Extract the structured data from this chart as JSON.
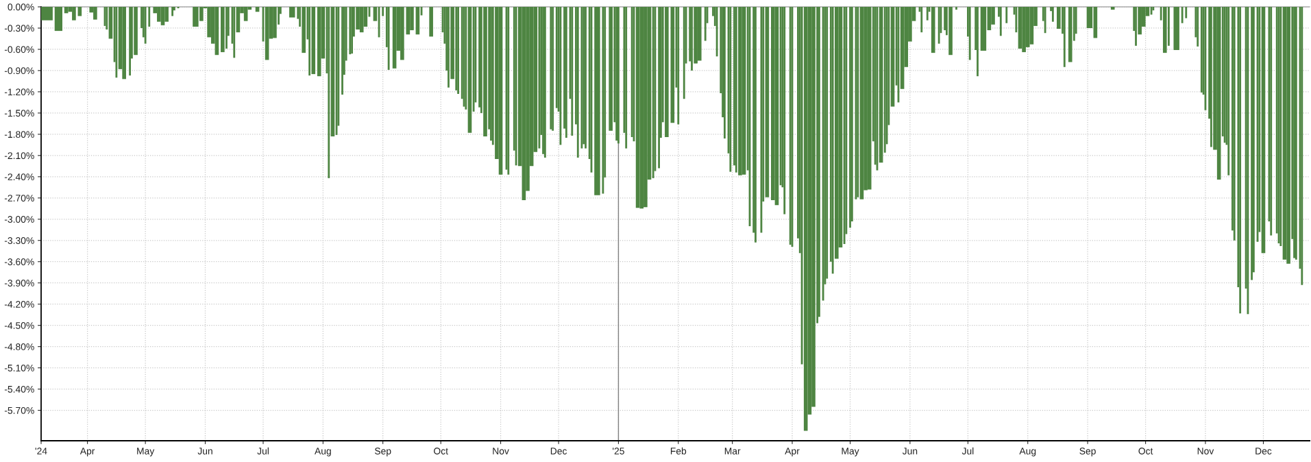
{
  "chart_data": {
    "type": "bar",
    "color": "#4e8542",
    "x": [
      "2024-03-11",
      "2024-03-17",
      "2024-03-21",
      "2024-03-23",
      "2024-03-25",
      "2024-03-28",
      "2024-03-30",
      "2024-04-03",
      "2024-04-05",
      "2024-04-08",
      "2024-04-10",
      "2024-04-11",
      "2024-04-13",
      "2024-04-15",
      "2024-04-16",
      "2024-04-18",
      "2024-04-20",
      "2024-04-23",
      "2024-04-24",
      "2024-04-26",
      "2024-04-29",
      "2024-04-30",
      "2024-05-01",
      "2024-05-03",
      "2024-05-04",
      "2024-05-06",
      "2024-05-08",
      "2024-05-10",
      "2024-05-12",
      "2024-05-15",
      "2024-05-16",
      "2024-05-18",
      "2024-05-19",
      "2024-05-27",
      "2024-05-30",
      "2024-06-01",
      "2024-06-03",
      "2024-06-05",
      "2024-06-07",
      "2024-06-10",
      "2024-06-12",
      "2024-06-13",
      "2024-06-15",
      "2024-06-16",
      "2024-06-18",
      "2024-06-20",
      "2024-06-22",
      "2024-06-24",
      "2024-06-26",
      "2024-06-28",
      "2024-06-30",
      "2024-07-01",
      "2024-07-03",
      "2024-07-05",
      "2024-07-07",
      "2024-07-09",
      "2024-07-10",
      "2024-07-12",
      "2024-07-16",
      "2024-07-19",
      "2024-07-20",
      "2024-07-22",
      "2024-07-24",
      "2024-07-25",
      "2024-07-27",
      "2024-07-30",
      "2024-08-01",
      "2024-08-03",
      "2024-08-04",
      "2024-08-06",
      "2024-08-08",
      "2024-08-09",
      "2024-08-11",
      "2024-08-12",
      "2024-08-13",
      "2024-08-15",
      "2024-08-16",
      "2024-08-17",
      "2024-08-19",
      "2024-08-21",
      "2024-08-23",
      "2024-08-25",
      "2024-08-26",
      "2024-08-28",
      "2024-08-30",
      "2024-08-31",
      "2024-09-01",
      "2024-09-03",
      "2024-09-04",
      "2024-09-07",
      "2024-09-09",
      "2024-09-11",
      "2024-09-14",
      "2024-09-16",
      "2024-09-19",
      "2024-09-21",
      "2024-09-22",
      "2024-09-26",
      "2024-09-28",
      "2024-10-02",
      "2024-10-03",
      "2024-10-04",
      "2024-10-05",
      "2024-10-07",
      "2024-10-09",
      "2024-10-10",
      "2024-10-12",
      "2024-10-13",
      "2024-10-14",
      "2024-10-16",
      "2024-10-18",
      "2024-10-19",
      "2024-10-21",
      "2024-10-22",
      "2024-10-24",
      "2024-10-26",
      "2024-10-27",
      "2024-10-28",
      "2024-10-30",
      "2024-11-01",
      "2024-11-04",
      "2024-11-05",
      "2024-11-08",
      "2024-11-09",
      "2024-11-11",
      "2024-11-13",
      "2024-11-15",
      "2024-11-17",
      "2024-11-19",
      "2024-11-21",
      "2024-11-22",
      "2024-11-23",
      "2024-11-24",
      "2024-11-27",
      "2024-11-28",
      "2024-11-30",
      "2024-12-01",
      "2024-12-02",
      "2024-12-04",
      "2024-12-05",
      "2024-12-07",
      "2024-12-08",
      "2024-12-10",
      "2024-12-11",
      "2024-12-13",
      "2024-12-14",
      "2024-12-15",
      "2024-12-17",
      "2024-12-18",
      "2024-12-21",
      "2024-12-24",
      "2024-12-25",
      "2024-12-28",
      "2024-12-30",
      "2024-12-31",
      "2025-01-01",
      "2025-01-04",
      "2025-01-05",
      "2025-01-08",
      "2025-01-09",
      "2025-01-11",
      "2025-01-13",
      "2025-01-15",
      "2025-01-17",
      "2025-01-19",
      "2025-01-20",
      "2025-01-22",
      "2025-01-23",
      "2025-01-24",
      "2025-01-26",
      "2025-01-29",
      "2025-01-31",
      "2025-02-01",
      "2025-02-04",
      "2025-02-05",
      "2025-02-07",
      "2025-02-08",
      "2025-02-10",
      "2025-02-12",
      "2025-02-15",
      "2025-02-16",
      "2025-02-19",
      "2025-02-20",
      "2025-02-21",
      "2025-02-23",
      "2025-02-24",
      "2025-02-25",
      "2025-02-27",
      "2025-02-28",
      "2025-03-02",
      "2025-03-03",
      "2025-03-05",
      "2025-03-07",
      "2025-03-09",
      "2025-03-10",
      "2025-03-12",
      "2025-03-13",
      "2025-03-16",
      "2025-03-17",
      "2025-03-19",
      "2025-03-22",
      "2025-03-24",
      "2025-03-26",
      "2025-03-27",
      "2025-03-28",
      "2025-03-31",
      "2025-04-01",
      "2025-04-04",
      "2025-04-05",
      "2025-04-06",
      "2025-04-08",
      "2025-04-10",
      "2025-04-12",
      "2025-04-14",
      "2025-04-15",
      "2025-04-17",
      "2025-04-18",
      "2025-04-19",
      "2025-04-21",
      "2025-04-22",
      "2025-04-24",
      "2025-04-26",
      "2025-04-28",
      "2025-04-29",
      "2025-05-01",
      "2025-05-02",
      "2025-05-04",
      "2025-05-05",
      "2025-05-07",
      "2025-05-09",
      "2025-05-11",
      "2025-05-13",
      "2025-05-14",
      "2025-05-15",
      "2025-05-17",
      "2025-05-19",
      "2025-05-20",
      "2025-05-21",
      "2025-05-23",
      "2025-05-25",
      "2025-05-26",
      "2025-05-28",
      "2025-05-30",
      "2025-06-01",
      "2025-06-03",
      "2025-06-05",
      "2025-06-06",
      "2025-06-07",
      "2025-06-10",
      "2025-06-11",
      "2025-06-13",
      "2025-06-16",
      "2025-06-17",
      "2025-06-19",
      "2025-06-20",
      "2025-06-22",
      "2025-06-25",
      "2025-06-26",
      "2025-07-01",
      "2025-07-02",
      "2025-07-05",
      "2025-07-06",
      "2025-07-09",
      "2025-07-12",
      "2025-07-14",
      "2025-07-16",
      "2025-07-17",
      "2025-07-18",
      "2025-07-20",
      "2025-07-21",
      "2025-07-23",
      "2025-07-25",
      "2025-07-26",
      "2025-07-28",
      "2025-07-30",
      "2025-08-01",
      "2025-08-03",
      "2025-08-05",
      "2025-08-07",
      "2025-08-09",
      "2025-08-10",
      "2025-08-13",
      "2025-08-14",
      "2025-08-17",
      "2025-08-19",
      "2025-08-20",
      "2025-08-23",
      "2025-08-25",
      "2025-08-26",
      "2025-08-29",
      "2025-09-02",
      "2025-09-05",
      "2025-09-07",
      "2025-09-14",
      "2025-09-16",
      "2025-09-25",
      "2025-09-26",
      "2025-09-28",
      "2025-09-30",
      "2025-10-02",
      "2025-10-04",
      "2025-10-05",
      "2025-10-08",
      "2025-10-09",
      "2025-10-11",
      "2025-10-13",
      "2025-10-14",
      "2025-10-17",
      "2025-10-20",
      "2025-10-21",
      "2025-10-22",
      "2025-10-24",
      "2025-10-27",
      "2025-10-28",
      "2025-10-30",
      "2025-10-31",
      "2025-11-01",
      "2025-11-03",
      "2025-11-04",
      "2025-11-06",
      "2025-11-08",
      "2025-11-10",
      "2025-11-11",
      "2025-11-12",
      "2025-11-13",
      "2025-11-15",
      "2025-11-16",
      "2025-11-18",
      "2025-11-19",
      "2025-11-22",
      "2025-11-23",
      "2025-11-25",
      "2025-11-26",
      "2025-11-28",
      "2025-11-29",
      "2025-12-01",
      "2025-12-04",
      "2025-12-05",
      "2025-12-08",
      "2025-12-09",
      "2025-12-10",
      "2025-12-12",
      "2025-12-14",
      "2025-12-16",
      "2025-12-17",
      "2025-12-18",
      "2025-12-20",
      "2025-12-21"
    ],
    "values": [
      -0.19,
      -0.34,
      -0.09,
      -0.07,
      -0.19,
      -0.13,
      0,
      -0.08,
      -0.18,
      0,
      -0.27,
      -0.32,
      -0.45,
      -0.78,
      -1.0,
      -0.88,
      -1.02,
      -0.97,
      -0.73,
      -0.68,
      -0.3,
      -0.43,
      -0.52,
      -0.28,
      0,
      -0.09,
      -0.21,
      -0.26,
      -0.21,
      -0.13,
      -0.05,
      -0.02,
      0,
      -0.28,
      -0.2,
      -0.02,
      -0.43,
      -0.52,
      -0.68,
      -0.64,
      -0.59,
      -0.41,
      -0.52,
      -0.72,
      -0.36,
      -0.09,
      -0.2,
      -0.04,
      0,
      -0.07,
      0,
      -0.49,
      -0.75,
      -0.45,
      -0.44,
      -0.25,
      -0.1,
      0,
      -0.15,
      -0.17,
      -0.28,
      -0.65,
      -0.46,
      -0.97,
      -0.95,
      -0.98,
      -0.73,
      -0.94,
      -2.42,
      -1.83,
      -1.81,
      -1.68,
      -1.24,
      -0.96,
      -0.76,
      -0.67,
      -0.66,
      -0.42,
      -0.32,
      -0.36,
      -0.28,
      -0.14,
      0,
      -0.2,
      -0.43,
      0,
      -0.13,
      -0.57,
      -0.89,
      -0.87,
      -0.62,
      -0.75,
      -0.39,
      -0.33,
      -0.39,
      -0.12,
      0,
      -0.42,
      0,
      -0.36,
      -0.52,
      -0.9,
      -1.14,
      -1.02,
      -1.18,
      -1.23,
      -1.3,
      -1.41,
      -1.45,
      -1.78,
      -1.48,
      -1.35,
      -1.42,
      -1.5,
      -1.83,
      -1.73,
      -1.89,
      -1.95,
      -2.15,
      -2.37,
      -2.3,
      -2.37,
      -2.03,
      -2.24,
      -2.25,
      -2.73,
      -2.6,
      -2.25,
      -2.05,
      -2.0,
      -1.81,
      -2.08,
      -2.13,
      -1.73,
      -1.75,
      -1.43,
      -1.48,
      -1.95,
      -1.72,
      -1.85,
      -1.3,
      -1.82,
      -1.66,
      -2.13,
      -2.0,
      -1.94,
      -2.0,
      -2.15,
      -2.34,
      -2.66,
      -2.64,
      -2.41,
      -1.75,
      -1.63,
      -1.89,
      -1.93,
      -1.78,
      -2.0,
      -1.84,
      -1.9,
      -2.84,
      -2.85,
      -2.83,
      -2.44,
      -2.42,
      -2.32,
      -2.28,
      -1.85,
      -1.63,
      -1.84,
      -1.64,
      -1.14,
      -1.66,
      -1.3,
      -0.8,
      -0.77,
      -0.9,
      -0.8,
      -0.76,
      -0.48,
      -0.23,
      -0.13,
      -0.27,
      -0.7,
      -1.22,
      -1.56,
      -1.86,
      -2.07,
      -2.33,
      -2.24,
      -2.34,
      -2.38,
      -2.37,
      -2.31,
      -3.1,
      -3.19,
      -3.33,
      -3.19,
      -2.75,
      -2.69,
      -2.73,
      -2.8,
      -2.52,
      -2.55,
      -2.93,
      -3.36,
      -3.39,
      -3.27,
      -3.48,
      -5.05,
      -5.99,
      -5.76,
      -5.65,
      -4.47,
      -4.38,
      -4.15,
      -3.92,
      -3.84,
      -3.6,
      -3.77,
      -3.56,
      -3.4,
      -3.35,
      -3.21,
      -3.12,
      -3.03,
      -2.72,
      -2.69,
      -2.72,
      -2.59,
      -2.58,
      -1.9,
      -2.23,
      -2.31,
      -2.2,
      -2.06,
      -1.94,
      -1.67,
      -1.41,
      -1.11,
      -1.35,
      -1.16,
      -0.85,
      -0.49,
      -0.2,
      0,
      -0.07,
      -0.36,
      -0.19,
      -0.07,
      -0.65,
      -0.52,
      -0.37,
      -0.33,
      -0.4,
      -0.68,
      -0.04,
      0,
      -0.42,
      -0.75,
      -0.61,
      -0.98,
      -0.62,
      -0.33,
      -0.25,
      0,
      -0.14,
      -0.41,
      0,
      -0.23,
      0,
      -0.11,
      -0.36,
      -0.59,
      -0.64,
      -0.57,
      -0.53,
      -0.27,
      0,
      -0.2,
      -0.37,
      -0.06,
      -0.21,
      -0.31,
      -0.38,
      -0.85,
      -0.78,
      -0.48,
      -0.38,
      0,
      -0.3,
      -0.44,
      0,
      -0.04,
      0,
      -0.34,
      -0.55,
      -0.39,
      -0.28,
      -0.13,
      -0.11,
      -0.05,
      0,
      -0.19,
      -0.65,
      -0.55,
      0,
      -0.61,
      -0.23,
      0,
      -0.16,
      0,
      -0.43,
      -0.56,
      -1.21,
      -1.24,
      -1.46,
      -1.58,
      -1.98,
      -2.02,
      -2.44,
      -1.83,
      -1.92,
      -1.95,
      -2.38,
      -3.16,
      -3.3,
      -3.96,
      -4.33,
      -3.98,
      -4.34,
      -3.86,
      -3.75,
      -3.32,
      -3.18,
      -3.48,
      -3.03,
      -3.23,
      -3.2,
      -3.34,
      -3.38,
      -3.57,
      -3.63,
      -3.28,
      -3.55,
      -3.57,
      -3.7,
      -3.93
    ],
    "xlim": [
      "2024-03-08",
      "2025-12-25"
    ],
    "xticks": [
      {
        "value": "2024-03-08",
        "label": "'24"
      },
      {
        "value": "2024-04-01",
        "label": "Apr"
      },
      {
        "value": "2024-05-01",
        "label": "May"
      },
      {
        "value": "2024-06-01",
        "label": "Jun"
      },
      {
        "value": "2024-07-01",
        "label": "Jul"
      },
      {
        "value": "2024-08-01",
        "label": "Aug"
      },
      {
        "value": "2024-09-01",
        "label": "Sep"
      },
      {
        "value": "2024-10-01",
        "label": "Oct"
      },
      {
        "value": "2024-11-01",
        "label": "Nov"
      },
      {
        "value": "2024-12-01",
        "label": "Dec"
      },
      {
        "value": "2025-01-01",
        "label": "'25"
      },
      {
        "value": "2025-02-01",
        "label": "Feb"
      },
      {
        "value": "2025-03-01",
        "label": "Mar"
      },
      {
        "value": "2025-04-01",
        "label": "Apr"
      },
      {
        "value": "2025-05-01",
        "label": "May"
      },
      {
        "value": "2025-06-01",
        "label": "Jun"
      },
      {
        "value": "2025-07-01",
        "label": "Jul"
      },
      {
        "value": "2025-08-01",
        "label": "Aug"
      },
      {
        "value": "2025-09-01",
        "label": "Sep"
      },
      {
        "value": "2025-10-01",
        "label": "Oct"
      },
      {
        "value": "2025-11-01",
        "label": "Nov"
      },
      {
        "value": "2025-12-01",
        "label": "Dec"
      }
    ],
    "ylim": [
      -6.13,
      0
    ],
    "yticks": [
      {
        "value": 0,
        "label": "0.00%"
      },
      {
        "value": -0.3,
        "label": "-0.30%"
      },
      {
        "value": -0.6,
        "label": "-0.60%"
      },
      {
        "value": -0.9,
        "label": "-0.90%"
      },
      {
        "value": -1.2,
        "label": "-1.20%"
      },
      {
        "value": -1.5,
        "label": "-1.50%"
      },
      {
        "value": -1.8,
        "label": "-1.80%"
      },
      {
        "value": -2.1,
        "label": "-2.10%"
      },
      {
        "value": -2.4,
        "label": "-2.40%"
      },
      {
        "value": -2.7,
        "label": "-2.70%"
      },
      {
        "value": -3.0,
        "label": "-3.00%"
      },
      {
        "value": -3.3,
        "label": "-3.30%"
      },
      {
        "value": -3.6,
        "label": "-3.60%"
      },
      {
        "value": -3.9,
        "label": "-3.90%"
      },
      {
        "value": -4.2,
        "label": "-4.20%"
      },
      {
        "value": -4.5,
        "label": "-4.50%"
      },
      {
        "value": -4.8,
        "label": "-4.80%"
      },
      {
        "value": -5.1,
        "label": "-5.10%"
      },
      {
        "value": -5.4,
        "label": "-5.40%"
      },
      {
        "value": -5.7,
        "label": "-5.70%"
      }
    ],
    "ref_lines": [
      {
        "axis": "x",
        "value": "2025-01-01",
        "color": "#808080"
      }
    ],
    "grid": true
  }
}
